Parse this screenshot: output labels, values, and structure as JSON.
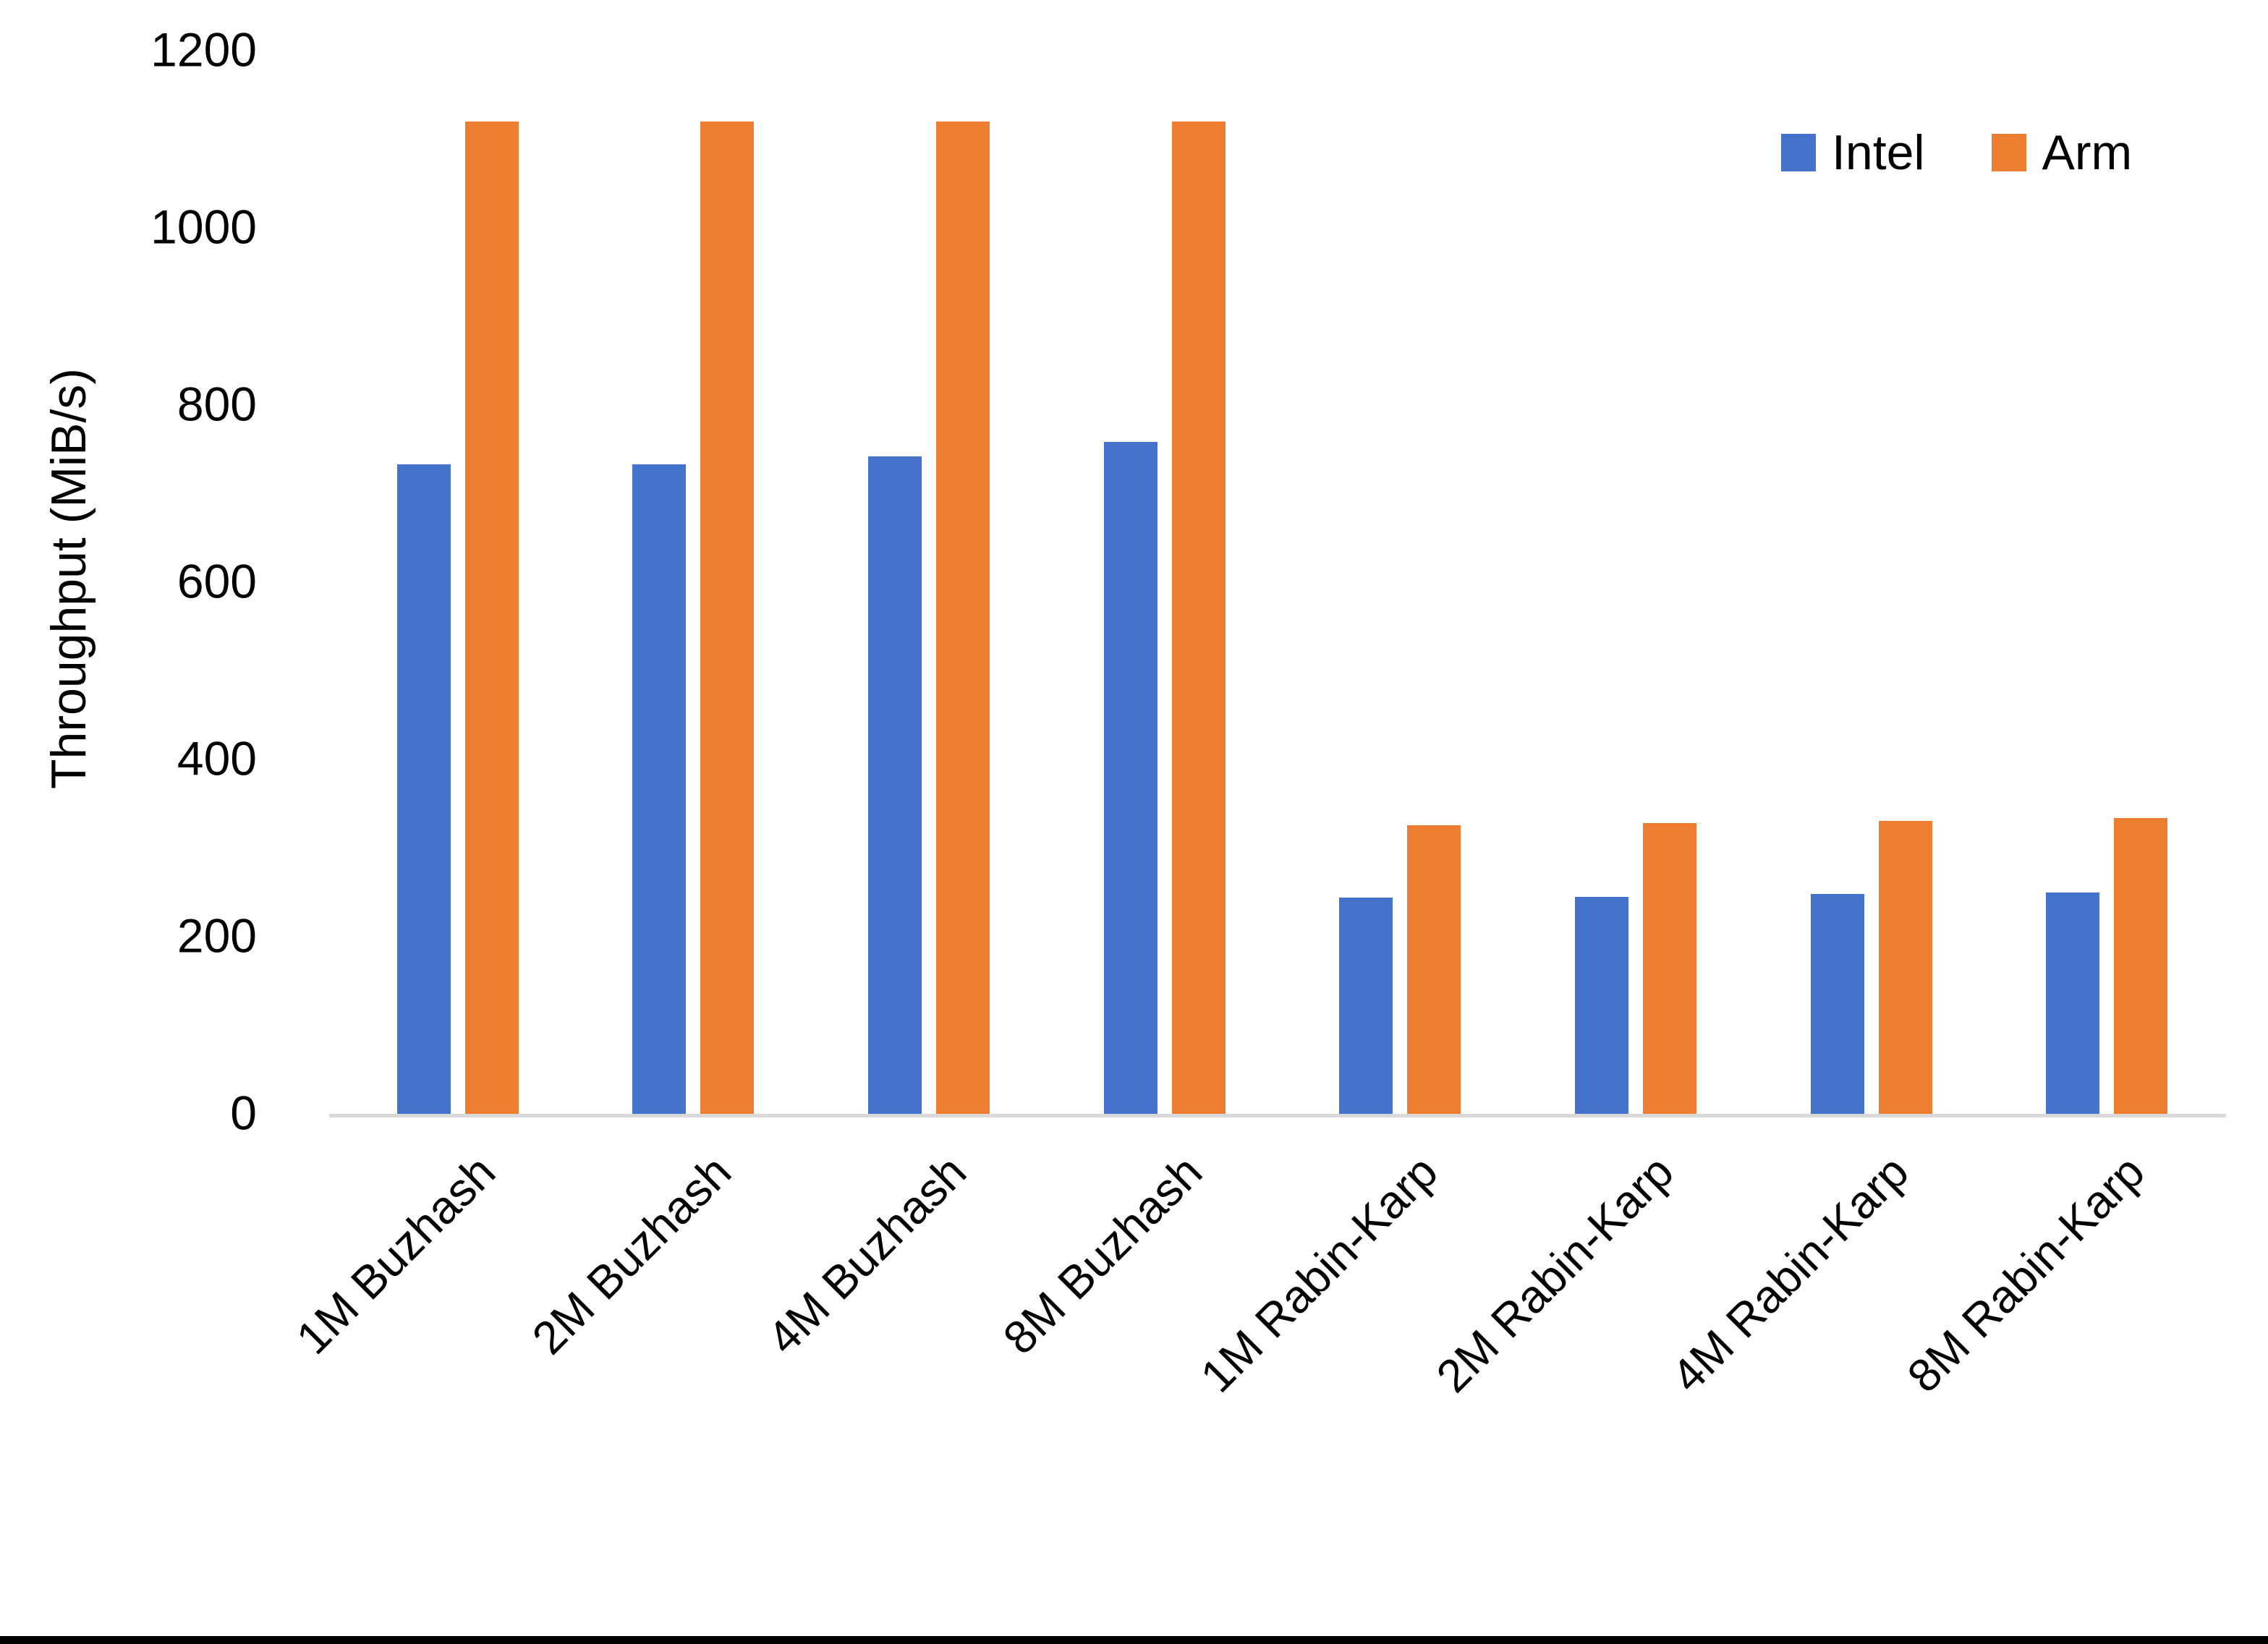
{
  "chart_data": {
    "type": "bar",
    "title": "",
    "ylabel": "Throughput (MiB/s)",
    "xlabel": "",
    "ylim": [
      0,
      1200
    ],
    "yticks": [
      0,
      200,
      400,
      600,
      800,
      1000,
      1200
    ],
    "grid": false,
    "legend_position": "top-right",
    "categories": [
      "1M Buzhash",
      "2M Buzhash",
      "4M Buzhash",
      "8M Buzhash",
      "1M Rabin-Karp",
      "2M Rabin-Karp",
      "4M Rabin-Karp",
      "8M Rabin-Karp"
    ],
    "series": [
      {
        "name": "Intel",
        "color": "#4573CB",
        "values": [
          733,
          733,
          742,
          758,
          244,
          245,
          248,
          250
        ]
      },
      {
        "name": "Arm",
        "color": "#ED7D31",
        "values": [
          1120,
          1120,
          1120,
          1120,
          326,
          328,
          331,
          334
        ]
      }
    ]
  },
  "style": {
    "axis_line_color": "#D9D9D9",
    "text_color": "#000000",
    "background": "#FFFFFF",
    "bottom_bar_color": "#000000"
  }
}
